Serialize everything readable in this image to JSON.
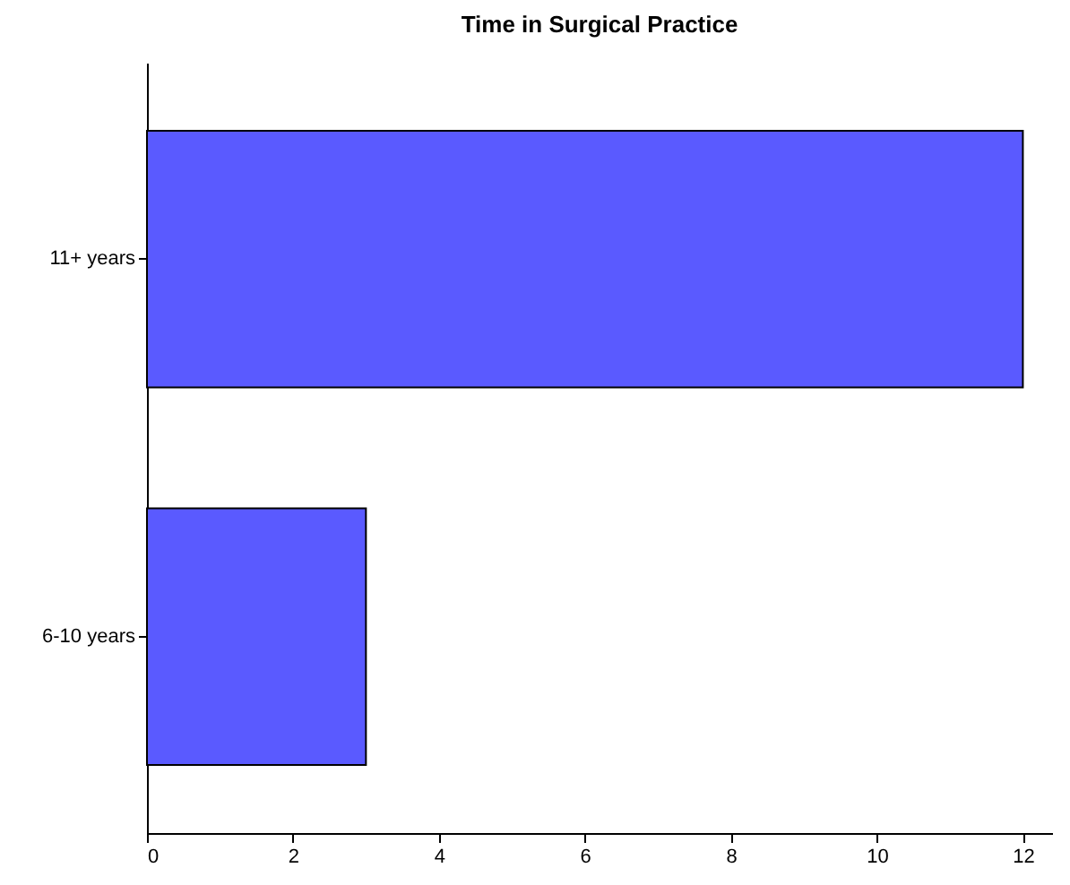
{
  "chart_data": {
    "type": "bar",
    "orientation": "horizontal",
    "title": "Time in Surgical Practice",
    "categories": [
      "11+ years",
      "6-10 years"
    ],
    "series": [
      {
        "color": "#5a5aff",
        "values": [
          12,
          3
        ]
      }
    ],
    "xlim": [
      0,
      12.4
    ],
    "xticks": [
      0,
      2,
      4,
      6,
      8,
      10,
      12
    ],
    "grid": false
  }
}
